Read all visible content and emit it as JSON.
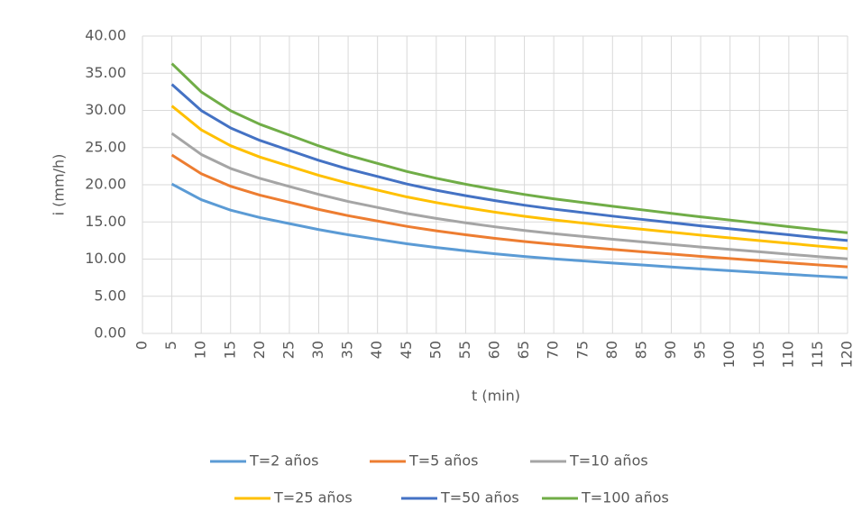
{
  "chart_data": {
    "type": "line",
    "x_label": "t (min)",
    "y_label": "i (mm/h)",
    "x": [
      5,
      10,
      15,
      20,
      25,
      30,
      35,
      40,
      45,
      50,
      55,
      60,
      65,
      70,
      75,
      80,
      85,
      90,
      95,
      100,
      105,
      110,
      115,
      120
    ],
    "series": [
      {
        "name": "T=2 años",
        "color": "#5b9bd5",
        "values": [
          20.1,
          17.99,
          16.58,
          15.58,
          14.77,
          13.97,
          13.27,
          12.66,
          12.06,
          11.56,
          11.12,
          10.71,
          10.35,
          10.03,
          9.75,
          9.47,
          9.21,
          8.94,
          8.68,
          8.44,
          8.2,
          7.96,
          7.72,
          7.5
        ]
      },
      {
        "name": "T=5 años",
        "color": "#ed7d31",
        "values": [
          24.0,
          21.48,
          19.8,
          18.6,
          17.64,
          16.68,
          15.84,
          15.12,
          14.4,
          13.8,
          13.27,
          12.79,
          12.36,
          11.98,
          11.64,
          11.3,
          10.99,
          10.68,
          10.37,
          10.08,
          9.79,
          9.5,
          9.22,
          8.95
        ]
      },
      {
        "name": "T=10 años",
        "color": "#a5a5a5",
        "values": [
          26.9,
          24.08,
          22.19,
          20.85,
          19.77,
          18.7,
          17.75,
          16.95,
          16.14,
          15.47,
          14.88,
          14.34,
          13.85,
          13.42,
          13.05,
          12.67,
          12.32,
          11.97,
          11.62,
          11.3,
          10.98,
          10.65,
          10.33,
          10.03
        ]
      },
      {
        "name": "T=25 años",
        "color": "#ffc000",
        "values": [
          30.6,
          27.39,
          25.25,
          23.72,
          22.49,
          21.27,
          20.2,
          19.28,
          18.36,
          17.6,
          16.92,
          16.31,
          15.76,
          15.27,
          14.84,
          14.41,
          14.01,
          13.62,
          13.22,
          12.85,
          12.48,
          12.12,
          11.75,
          11.41
        ]
      },
      {
        "name": "T=50 años",
        "color": "#4472c4",
        "values": [
          33.5,
          29.98,
          27.64,
          25.96,
          24.62,
          23.28,
          22.11,
          21.11,
          20.1,
          19.26,
          18.53,
          17.86,
          17.25,
          16.72,
          16.25,
          15.78,
          15.34,
          14.91,
          14.47,
          14.07,
          13.67,
          13.27,
          12.86,
          12.5
        ]
      },
      {
        "name": "T=100 años",
        "color": "#70ad47",
        "values": [
          36.3,
          32.49,
          29.95,
          28.13,
          26.68,
          25.23,
          23.96,
          22.87,
          21.78,
          20.87,
          20.07,
          19.35,
          18.69,
          18.11,
          17.61,
          17.1,
          16.63,
          16.15,
          15.68,
          15.25,
          14.81,
          14.37,
          13.94,
          13.54
        ]
      }
    ],
    "xlim": [
      0,
      120
    ],
    "xticks": [
      0,
      5,
      10,
      15,
      20,
      25,
      30,
      35,
      40,
      45,
      50,
      55,
      60,
      65,
      70,
      75,
      80,
      85,
      90,
      95,
      100,
      105,
      110,
      115,
      120
    ],
    "ylim": [
      0,
      40
    ],
    "yticks": [
      {
        "value": 0,
        "label": "0.00"
      },
      {
        "value": 5,
        "label": "5.00"
      },
      {
        "value": 10,
        "label": "10.00"
      },
      {
        "value": 15,
        "label": "15.00"
      },
      {
        "value": 20,
        "label": "20.00"
      },
      {
        "value": 25,
        "label": "25.00"
      },
      {
        "value": 30,
        "label": "30.00"
      },
      {
        "value": 35,
        "label": "35.00"
      },
      {
        "value": 40,
        "label": "40.00"
      }
    ],
    "grid": true,
    "legend": "bottom"
  }
}
